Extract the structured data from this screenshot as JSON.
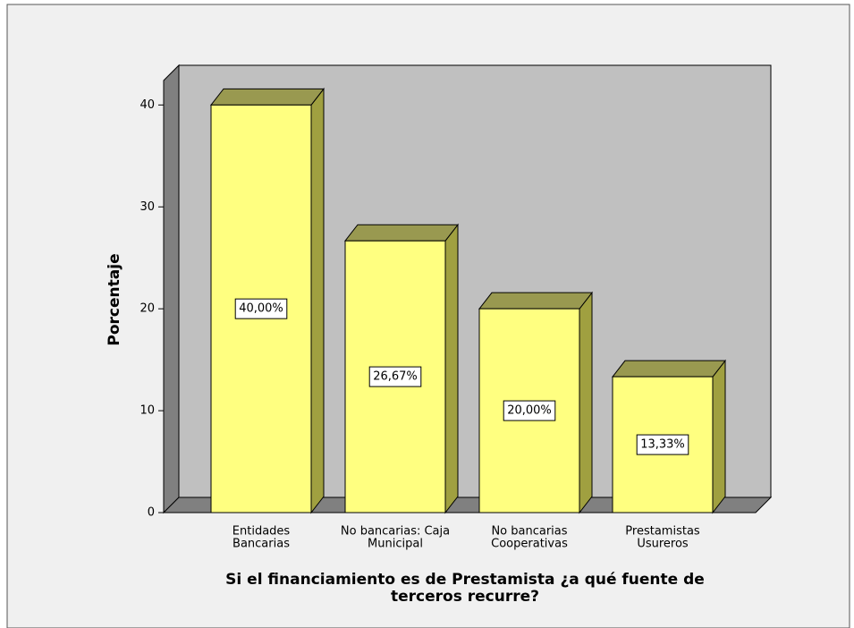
{
  "chart_data": {
    "type": "bar3d",
    "categories": [
      [
        "Entidades",
        "Bancarias"
      ],
      [
        "No bancarias: Caja",
        "Municipal"
      ],
      [
        "No bancarias",
        "Cooperativas"
      ],
      [
        "Prestamistas",
        "Usureros"
      ]
    ],
    "values": [
      40,
      26.67,
      20,
      13.33
    ],
    "value_labels": [
      "40,00%",
      "26,67%",
      "20,00%",
      "13,33%"
    ],
    "color": "#ffff80",
    "ylim": [
      0,
      42.4
    ],
    "yticks": [
      0,
      10,
      20,
      30,
      40
    ],
    "ylabel": "Porcentaje",
    "xlabel": [
      "Si el financiamiento es de Prestamista ¿a qué fuente de",
      "terceros recurre?"
    ]
  }
}
